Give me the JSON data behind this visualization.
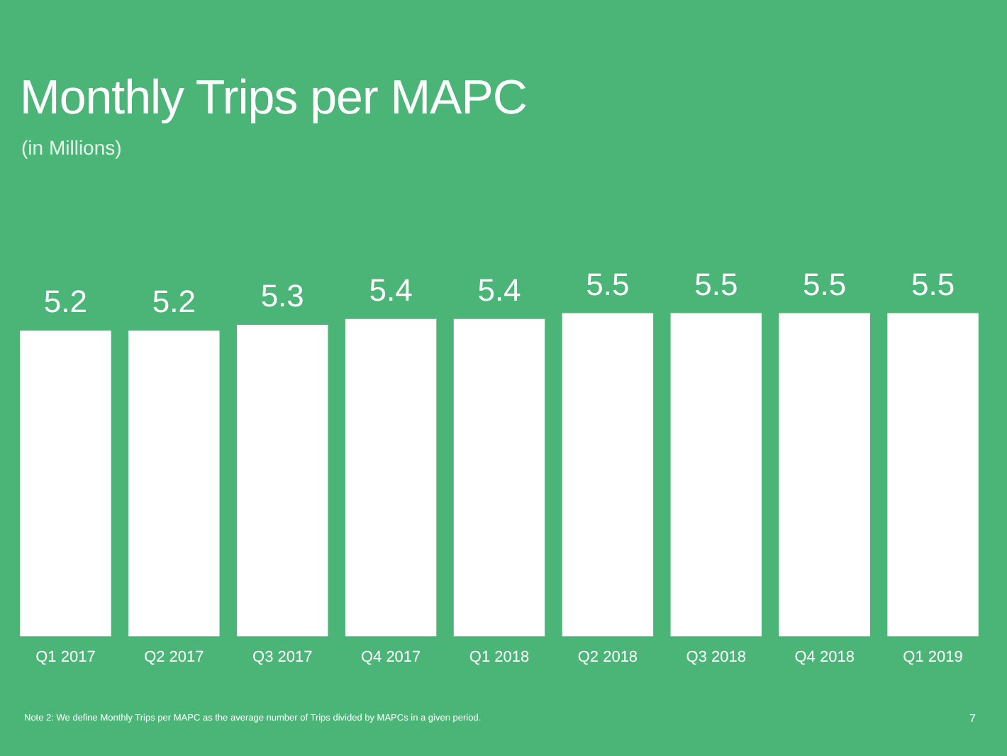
{
  "chart_data": {
    "type": "bar",
    "title": "Monthly Trips per MAPC",
    "subtitle": "(in Millions)",
    "categories": [
      "Q1 2017",
      "Q2 2017",
      "Q3 2017",
      "Q4 2017",
      "Q1 2018",
      "Q2 2018",
      "Q3 2018",
      "Q4 2018",
      "Q1 2019"
    ],
    "values": [
      5.2,
      5.2,
      5.3,
      5.4,
      5.4,
      5.5,
      5.5,
      5.5,
      5.5
    ],
    "color": "#ffffff",
    "tick_labels": "x",
    "grid": false,
    "legend": false,
    "data_labels": true,
    "annotations": [
      "Note 2: We define Monthly Trips per MAPC as the average number of Trips divided by MAPCs in a given period.",
      "7"
    ]
  }
}
